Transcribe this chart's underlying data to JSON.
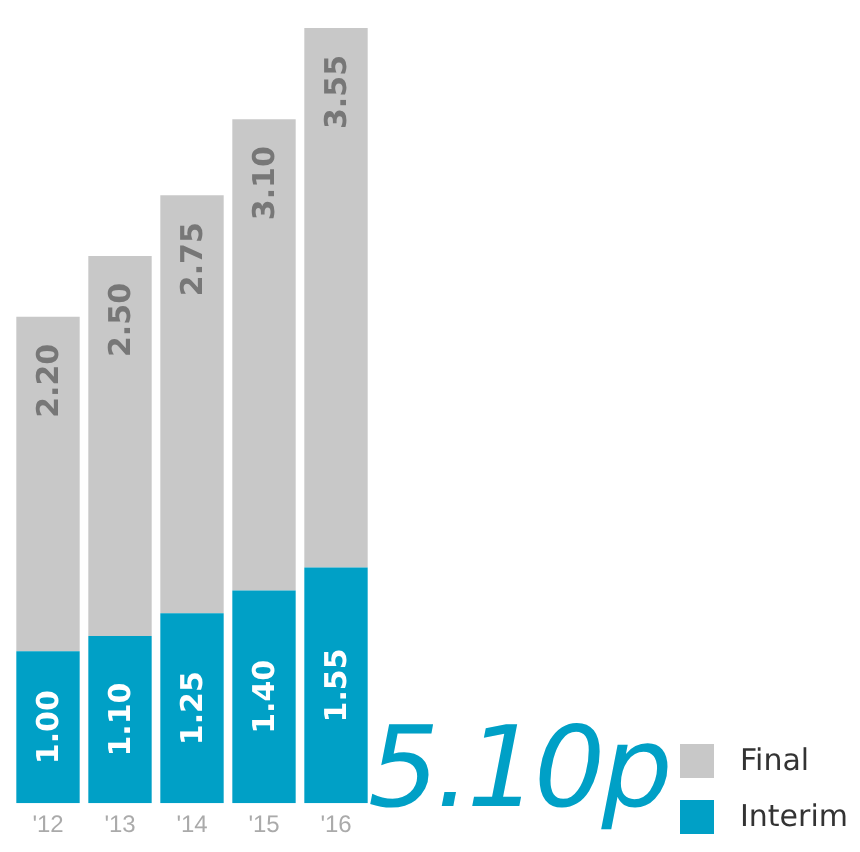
{
  "chart_data": {
    "type": "bar",
    "stacked": true,
    "categories": [
      "'12",
      "'13",
      "'14",
      "'15",
      "'16"
    ],
    "series": [
      {
        "name": "Interim",
        "color": "#00a0c6",
        "values": [
          1.0,
          1.1,
          1.25,
          1.4,
          1.55
        ],
        "value_labels": [
          "1.00",
          "1.10",
          "1.25",
          "1.40",
          "1.55"
        ]
      },
      {
        "name": "Final",
        "color": "#c8c8c8",
        "values": [
          2.2,
          2.5,
          2.75,
          3.1,
          3.55
        ],
        "value_labels": [
          "2.20",
          "2.50",
          "2.75",
          "3.10",
          "3.55"
        ]
      }
    ],
    "ylim": [
      0,
      5.1
    ],
    "tick_labels": "x",
    "grid": false,
    "legend": "bottom right",
    "annotations": [
      "5.10p"
    ]
  }
}
